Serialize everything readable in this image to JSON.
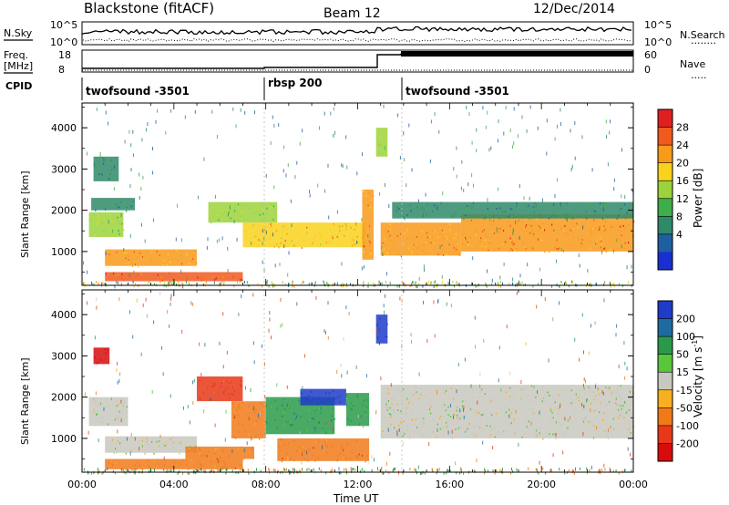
{
  "header": {
    "station": "Blackstone (fitACF)",
    "beam": "Beam 12",
    "date": "12/Dec/2014"
  },
  "panels": {
    "nsky": {
      "label": "N.Sky",
      "ticks_left": [
        "10^5",
        "10^0"
      ],
      "ticks_right": [
        "10^5",
        "10^0"
      ],
      "right_label": "N.Search",
      "right_legend": "........"
    },
    "freq": {
      "label_line1": "Freq.",
      "label_line2": "[MHz]",
      "ticks_left": [
        "18",
        "8"
      ],
      "ticks_right": [
        "60",
        "0"
      ],
      "right_label": "Nave",
      "right_legend": "....."
    },
    "cpid": {
      "label": "CPID",
      "segments": [
        "twofsound -3501",
        "rbsp 200",
        "twofsound -3501"
      ]
    }
  },
  "colorbars": {
    "power": {
      "title": "Power [dB]",
      "ticks": [
        "28",
        "24",
        "20",
        "16",
        "12",
        "8",
        "4"
      ],
      "colors": [
        "#e02020",
        "#f05a1e",
        "#f89a1a",
        "#f8d21c",
        "#9cd33c",
        "#3fae4a",
        "#2f8a6a",
        "#1f5fa0",
        "#1a2fd0"
      ]
    },
    "velocity": {
      "title": "Velocity [m s",
      "title_sup": "-1",
      "title_end": "]",
      "ticks": [
        "200",
        "100",
        "50",
        "15",
        "-15",
        "-50",
        "-100",
        "-200"
      ],
      "colors": [
        "#1e3cc8",
        "#1f6ba0",
        "#2a9a4a",
        "#58c83a",
        "#c8c8c0",
        "#f8b020",
        "#f07a1a",
        "#e83818",
        "#d80c0c"
      ]
    }
  },
  "axes": {
    "y_label": "Slant Range [km]",
    "y_ticks": [
      "4000",
      "3000",
      "2000",
      "1000"
    ],
    "x_label": "Time UT",
    "x_ticks": [
      "00:00",
      "04:00",
      "08:00",
      "12:00",
      "16:00",
      "20:00",
      "00:00"
    ]
  },
  "chart_data": [
    {
      "type": "heatmap",
      "title": "",
      "xlabel": "Time UT",
      "ylabel": "Slant Range [km]",
      "xlim_hours": [
        0,
        24
      ],
      "ylim": [
        180,
        4600
      ],
      "colorbar": "Power [dB]",
      "bands": [
        {
          "t0": 0.3,
          "t1": 1.8,
          "r0": 1350,
          "r1": 1950,
          "value": 16
        },
        {
          "t0": 0.4,
          "t1": 2.3,
          "r0": 2000,
          "r1": 2300,
          "value": 8
        },
        {
          "t0": 0.5,
          "t1": 1.6,
          "r0": 2700,
          "r1": 3300,
          "value": 6
        },
        {
          "t0": 1.0,
          "t1": 5.0,
          "r0": 650,
          "r1": 1050,
          "value": 22
        },
        {
          "t0": 1.0,
          "t1": 7.0,
          "r0": 280,
          "r1": 500,
          "value": 26
        },
        {
          "t0": 5.5,
          "t1": 8.5,
          "r0": 1700,
          "r1": 2200,
          "value": 16
        },
        {
          "t0": 7.0,
          "t1": 12.3,
          "r0": 1100,
          "r1": 1700,
          "value": 20
        },
        {
          "t0": 12.2,
          "t1": 12.7,
          "r0": 800,
          "r1": 2500,
          "value": 24
        },
        {
          "t0": 12.8,
          "t1": 13.3,
          "r0": 3300,
          "r1": 4000,
          "value": 16
        },
        {
          "t0": 13.0,
          "t1": 16.5,
          "r0": 900,
          "r1": 1700,
          "value": 22
        },
        {
          "t0": 16.5,
          "t1": 24.0,
          "r0": 1000,
          "r1": 1900,
          "value": 24
        },
        {
          "t0": 13.5,
          "t1": 24.0,
          "r0": 1800,
          "r1": 2200,
          "value": 8
        }
      ]
    },
    {
      "type": "heatmap",
      "title": "",
      "xlabel": "Time UT",
      "ylabel": "Slant Range [km]",
      "xlim_hours": [
        0,
        24
      ],
      "ylim": [
        180,
        4600
      ],
      "colorbar": "Velocity [m s-1]",
      "bands": [
        {
          "t0": 0.3,
          "t1": 2.0,
          "r0": 1300,
          "r1": 2000,
          "value": 0
        },
        {
          "t0": 1.0,
          "t1": 5.0,
          "r0": 650,
          "r1": 1050,
          "value": 0
        },
        {
          "t0": 0.5,
          "t1": 1.2,
          "r0": 2800,
          "r1": 3200,
          "value": -200
        },
        {
          "t0": 1.0,
          "t1": 7.0,
          "r0": 250,
          "r1": 500,
          "value": -50
        },
        {
          "t0": 4.5,
          "t1": 7.5,
          "r0": 500,
          "r1": 800,
          "value": -50
        },
        {
          "t0": 5.0,
          "t1": 7.0,
          "r0": 1900,
          "r1": 2500,
          "value": -100
        },
        {
          "t0": 6.5,
          "t1": 8.0,
          "r0": 1000,
          "r1": 1900,
          "value": -50
        },
        {
          "t0": 8.0,
          "t1": 11.0,
          "r0": 1100,
          "r1": 2000,
          "value": 50
        },
        {
          "t0": 9.5,
          "t1": 11.5,
          "r0": 1800,
          "r1": 2200,
          "value": 200
        },
        {
          "t0": 8.5,
          "t1": 12.5,
          "r0": 450,
          "r1": 1000,
          "value": -50
        },
        {
          "t0": 11.5,
          "t1": 12.5,
          "r0": 1300,
          "r1": 2100,
          "value": 50
        },
        {
          "t0": 12.8,
          "t1": 13.3,
          "r0": 3300,
          "r1": 4000,
          "value": 200
        },
        {
          "t0": 13.0,
          "t1": 24.0,
          "r0": 1000,
          "r1": 2300,
          "value": 0
        }
      ]
    }
  ]
}
